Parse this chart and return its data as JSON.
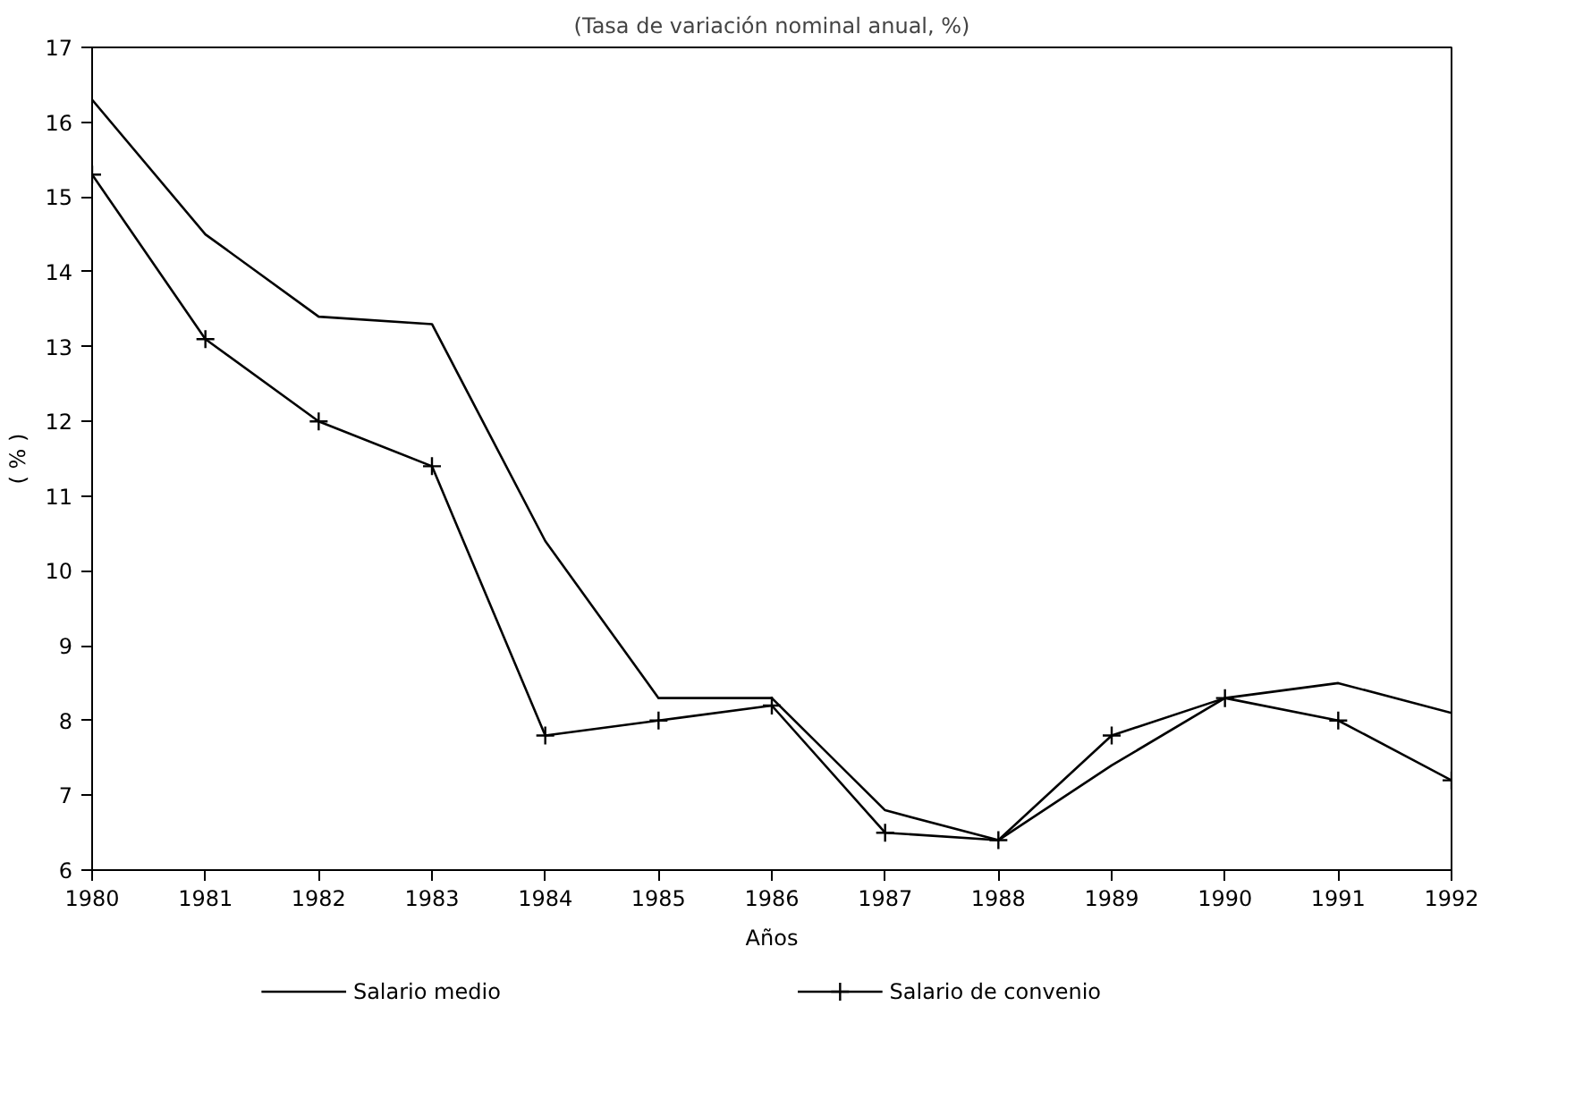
{
  "chart_data": {
    "type": "line",
    "title": "(Tasa de variación nominal anual, %)",
    "xlabel": "Años",
    "ylabel": "( % )",
    "x": [
      1980,
      1981,
      1982,
      1983,
      1984,
      1985,
      1986,
      1987,
      1988,
      1989,
      1990,
      1991,
      1992
    ],
    "xlim": [
      1980,
      1992
    ],
    "xticks": [
      1980,
      1981,
      1982,
      1983,
      1984,
      1985,
      1986,
      1987,
      1988,
      1989,
      1990,
      1991,
      1992
    ],
    "ylim": [
      6,
      17
    ],
    "yticks": [
      6,
      7,
      8,
      9,
      10,
      11,
      12,
      13,
      14,
      15,
      16,
      17
    ],
    "grid": false,
    "legend": "bottom",
    "line_style": "solid",
    "series": [
      {
        "name": "Salario medio",
        "color": "#000000",
        "marker": "none",
        "values": [
          16.3,
          14.5,
          13.4,
          13.3,
          10.4,
          8.3,
          8.3,
          6.8,
          6.4,
          7.4,
          8.3,
          8.5,
          8.1
        ]
      },
      {
        "name": "Salario de convenio",
        "color": "#000000",
        "marker": "cross",
        "values": [
          15.3,
          13.1,
          12.0,
          11.4,
          7.8,
          8.0,
          8.2,
          6.5,
          6.4,
          7.8,
          8.3,
          8.0,
          7.2
        ]
      }
    ]
  }
}
